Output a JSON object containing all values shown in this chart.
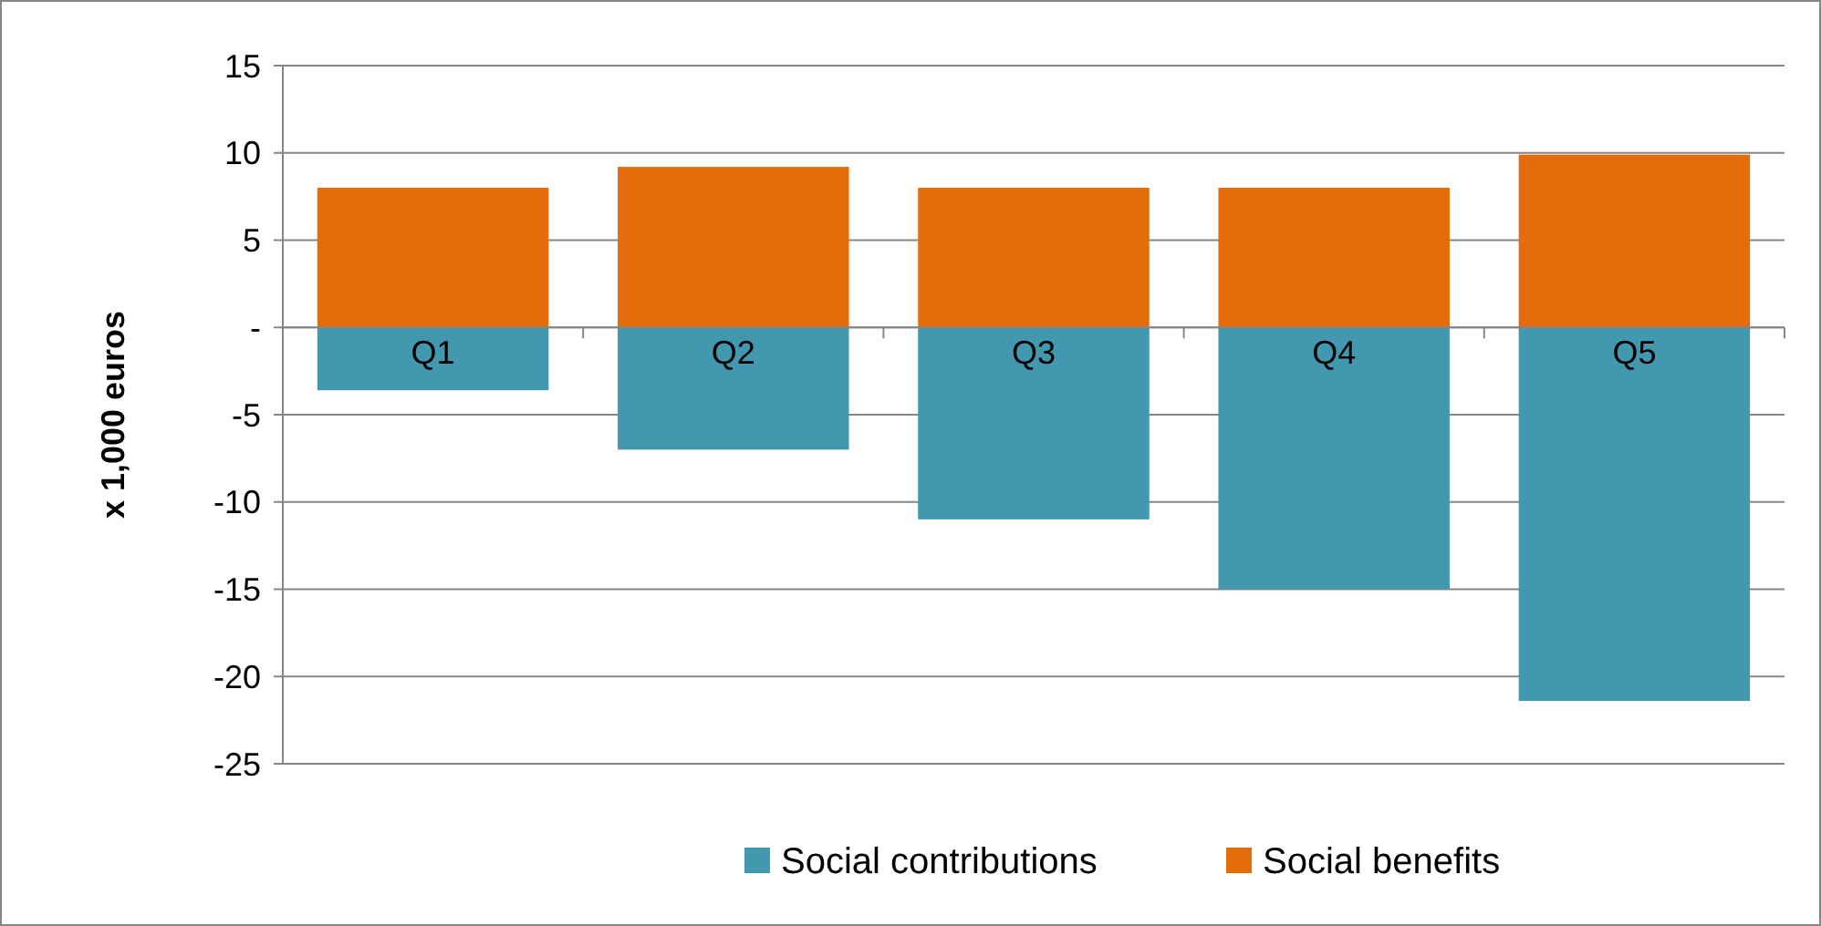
{
  "chart_data": {
    "type": "bar",
    "stacked": true,
    "ylabel": "x 1,000 euros",
    "categories": [
      "Q1",
      "Q2",
      "Q3",
      "Q4",
      "Q5"
    ],
    "series": [
      {
        "name": "Social contributions",
        "color": "#4298ae",
        "values": [
          -3.6,
          -7.0,
          -11.0,
          -15.0,
          -21.4
        ]
      },
      {
        "name": "Social benefits",
        "color": "#e46c0a",
        "values": [
          8.0,
          9.2,
          8.0,
          8.0,
          9.9
        ]
      }
    ],
    "ylim": [
      -25,
      15
    ],
    "yticks": [
      -25,
      -20,
      -15,
      -10,
      -5,
      {
        "value": 0,
        "label": "-"
      },
      5,
      10,
      15
    ],
    "grid": "y",
    "legend": "bottom"
  }
}
